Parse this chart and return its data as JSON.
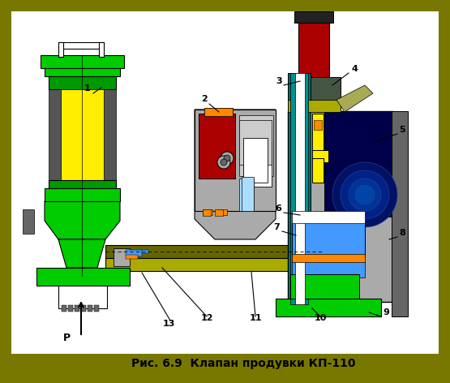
{
  "title": "Рис. 6.9  Клапан продувки КП-110",
  "fig_bg": "#787800",
  "title_fontsize": 10,
  "colors": {
    "green_bright": "#00cc00",
    "green_dark": "#009900",
    "yellow": "#ffee00",
    "gray": "#999999",
    "gray_med": "#aaaaaa",
    "gray_dark": "#666666",
    "gray_light": "#cccccc",
    "red_dark": "#aa0000",
    "teal_dark": "#007070",
    "teal": "#009090",
    "blue_bright": "#4499ff",
    "blue_deep": "#0000aa",
    "navy": "#00004a",
    "orange": "#ff8800",
    "white": "#ffffff",
    "black": "#000000",
    "olive": "#888800",
    "olive_light": "#aaaa00",
    "olive_dark": "#666600",
    "dark_green_gray": "#338833",
    "yellow_olive": "#aaaa00",
    "green_dark2": "#007700",
    "gray_stripe": "#555555"
  }
}
